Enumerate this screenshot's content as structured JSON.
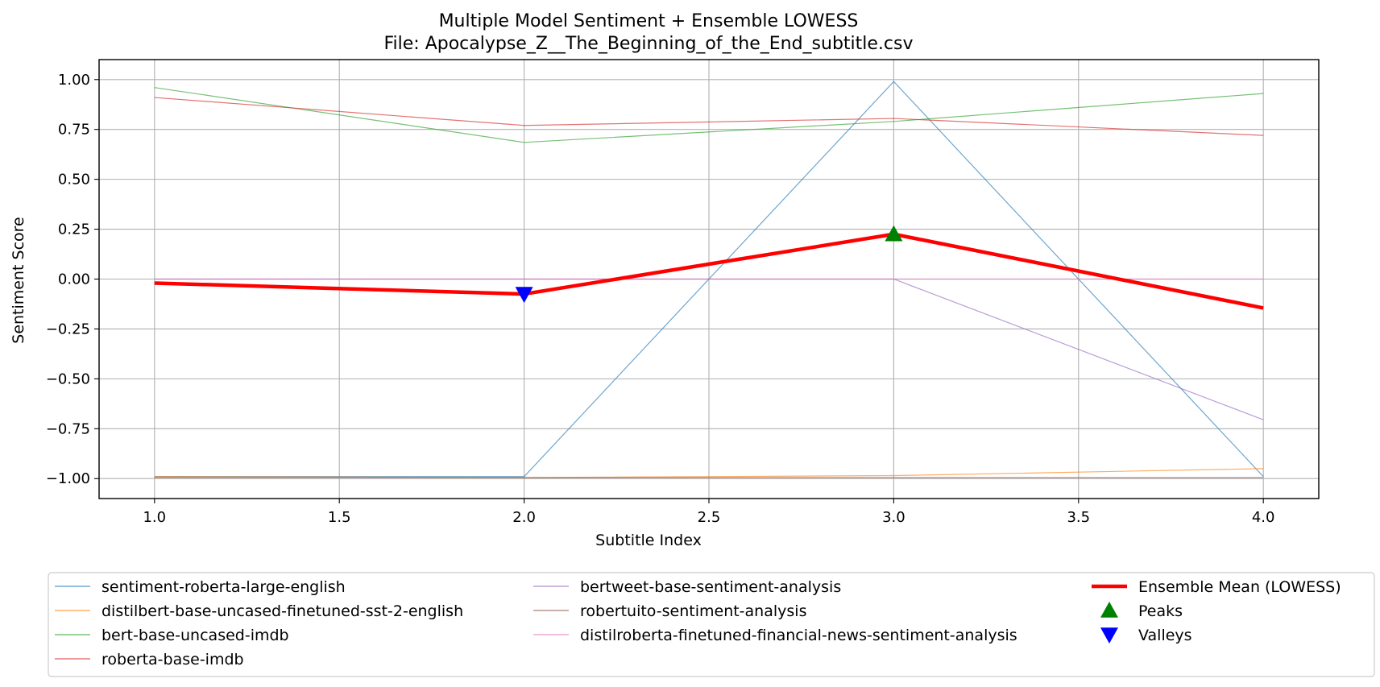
{
  "chart_data": {
    "type": "line",
    "title": "Multiple Model Sentiment + Ensemble LOWESS",
    "subtitle": "File: Apocalypse_Z__The_Beginning_of_the_End_subtitle.csv",
    "xlabel": "Subtitle Index",
    "ylabel": "Sentiment Score",
    "xlim": [
      0.85,
      4.15
    ],
    "ylim": [
      -1.1,
      1.1
    ],
    "xticks": [
      1.0,
      1.5,
      2.0,
      2.5,
      3.0,
      3.5,
      4.0
    ],
    "xtick_labels": [
      "1.0",
      "1.5",
      "2.0",
      "2.5",
      "3.0",
      "3.5",
      "4.0"
    ],
    "yticks": [
      1.0,
      0.75,
      0.5,
      0.25,
      0.0,
      -0.25,
      -0.5,
      -0.75,
      -1.0
    ],
    "ytick_labels": [
      "1.00",
      "0.75",
      "0.50",
      "0.25",
      "0.00",
      "−0.25",
      "−0.50",
      "−0.75",
      "−1.00"
    ],
    "grid": true,
    "legend_placement": "below",
    "x": [
      1,
      2,
      3,
      4
    ],
    "series": [
      {
        "name": "sentiment-roberta-large-english",
        "color": "#1f77b4",
        "values": [
          -0.99,
          -0.99,
          0.99,
          -0.99
        ]
      },
      {
        "name": "distilbert-base-uncased-finetuned-sst-2-english",
        "color": "#ff7f0e",
        "values": [
          -0.99,
          -0.995,
          -0.985,
          -0.95
        ]
      },
      {
        "name": "bert-base-uncased-imdb",
        "color": "#2ca02c",
        "values": [
          0.96,
          0.685,
          0.79,
          0.93
        ]
      },
      {
        "name": "roberta-base-imdb",
        "color": "#d62728",
        "values": [
          0.91,
          0.77,
          0.805,
          0.72
        ]
      },
      {
        "name": "bertweet-base-sentiment-analysis",
        "color": "#9467bd",
        "values": [
          0.0,
          0.0,
          0.0,
          -0.705
        ]
      },
      {
        "name": "robertuito-sentiment-analysis",
        "color": "#8c564b",
        "values": [
          -0.995,
          -0.995,
          -0.995,
          -0.995
        ]
      },
      {
        "name": "distilroberta-finetuned-financial-news-sentiment-analysis",
        "color": "#e377c2",
        "values": [
          0.0,
          0.0,
          0.0,
          0.0
        ]
      }
    ],
    "ensemble": {
      "name": "Ensemble Mean (LOWESS)",
      "color": "#ff0000",
      "values": [
        -0.02,
        -0.075,
        0.225,
        -0.145
      ]
    },
    "peaks": {
      "name": "Peaks",
      "color": "#008000",
      "points": [
        {
          "x": 3,
          "y": 0.225
        }
      ]
    },
    "valleys": {
      "name": "Valleys",
      "color": "#0000ff",
      "points": [
        {
          "x": 2,
          "y": -0.075
        }
      ]
    }
  }
}
